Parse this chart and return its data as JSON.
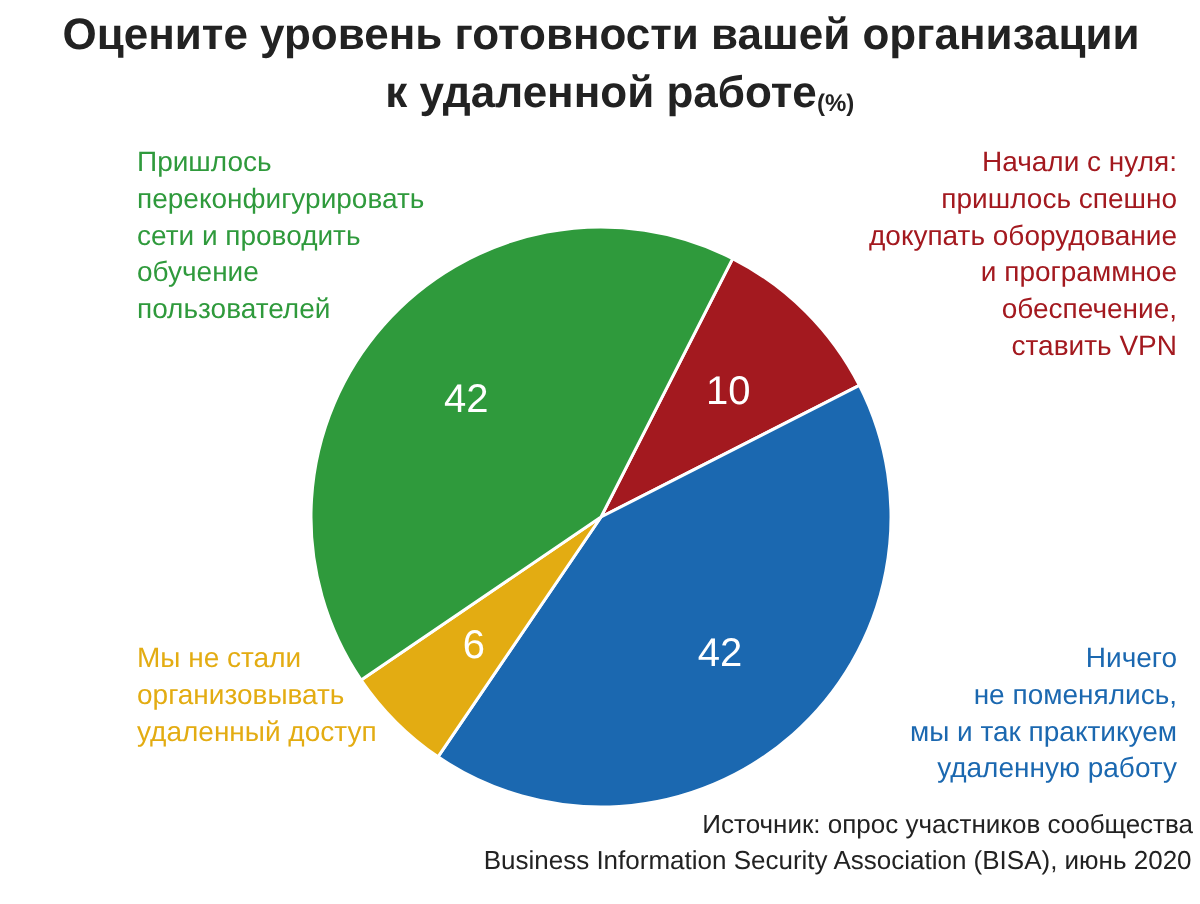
{
  "chart_data": {
    "type": "pie",
    "title": "Оцените уровень готовности вашей организации\nк удаленной работе",
    "subtitle": "(%)",
    "categories": [
      "Начали с нуля:\nпришлось спешно\nдокупать оборудование\nи программное\nобеспечение,\nставить VPN",
      "Ничего\nне поменялись,\nмы и так практикуем\nудаленную работу",
      "Мы не стали\nорганизовывать\nудаленный доступ",
      "Пришлось\nпереконфигурировать\nсети и проводить\nобучение\nпользователей"
    ],
    "values": [
      10,
      42,
      6,
      42
    ],
    "colors": [
      "#a3191f",
      "#1b68b0",
      "#e3ac12",
      "#2f9a3c"
    ],
    "data_labels": true,
    "annotations": [
      "Источник: опрос участников сообщества\nBusiness Information Security Association (BISA), июнь 2020"
    ]
  }
}
